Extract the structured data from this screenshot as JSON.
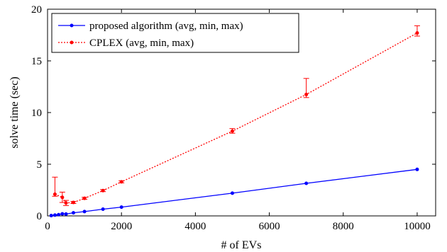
{
  "chart_data": {
    "type": "line",
    "xlabel": "# of EVs",
    "ylabel": "solve time (sec)",
    "xlim": [
      0,
      10500
    ],
    "ylim": [
      0,
      20
    ],
    "x_ticks": [
      0,
      2000,
      4000,
      6000,
      8000,
      10000
    ],
    "y_ticks": [
      0,
      5,
      10,
      15,
      20
    ],
    "x_tick_labels": [
      "0",
      "2000",
      "4000",
      "6000",
      "8000",
      "10000"
    ],
    "y_tick_labels": [
      "0",
      "5",
      "10",
      "15",
      "20"
    ],
    "grid": false,
    "legend_position": "top-left",
    "series": [
      {
        "name": "proposed algorithm (avg, min, max)",
        "color": "#0000ff",
        "line_style": "solid",
        "marker": "dot",
        "x": [
          100,
          200,
          300,
          400,
          500,
          700,
          1000,
          1500,
          2000,
          5000,
          7000,
          10000
        ],
        "y": [
          0.03,
          0.08,
          0.12,
          0.2,
          0.18,
          0.3,
          0.42,
          0.65,
          0.85,
          2.2,
          3.15,
          4.5
        ],
        "y_min": [
          0.03,
          0.07,
          0.11,
          0.19,
          0.17,
          0.29,
          0.41,
          0.63,
          0.83,
          2.18,
          3.12,
          4.47
        ],
        "y_max": [
          0.04,
          0.09,
          0.13,
          0.21,
          0.19,
          0.31,
          0.43,
          0.67,
          0.87,
          2.22,
          3.18,
          4.53
        ]
      },
      {
        "name": "CPLEX (avg, min, max)",
        "color": "#ff0000",
        "line_style": "dotted",
        "marker": "dot",
        "x": [
          200,
          400,
          500,
          700,
          1000,
          1500,
          2000,
          5000,
          7000,
          10000
        ],
        "y": [
          2.1,
          1.8,
          1.25,
          1.3,
          1.7,
          2.45,
          3.3,
          8.2,
          11.75,
          17.7
        ],
        "y_min": [
          1.9,
          1.3,
          1.0,
          1.2,
          1.6,
          2.35,
          3.2,
          8.0,
          11.45,
          17.4
        ],
        "y_max": [
          3.75,
          2.3,
          1.5,
          1.4,
          1.8,
          2.55,
          3.4,
          8.45,
          13.3,
          18.4
        ]
      }
    ]
  }
}
